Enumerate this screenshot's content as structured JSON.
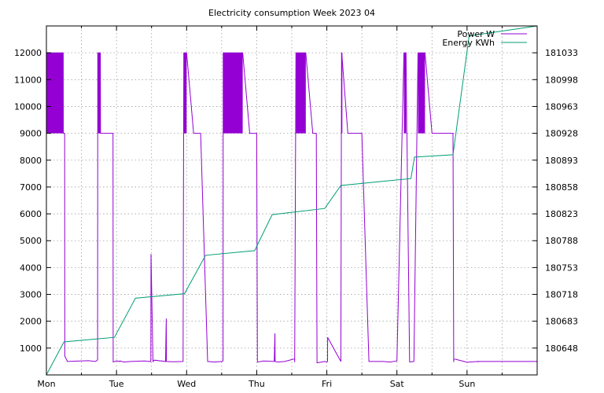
{
  "chart_data": {
    "type": "line",
    "title": "Electricity consumption Week 2023 04",
    "xlabel": "",
    "ylabel": "",
    "y2label": "",
    "grid": true,
    "legend_position": "top-right",
    "x_categories": [
      "Mon",
      "Tue",
      "Wed",
      "Thu",
      "Fri",
      "Sat",
      "Sun"
    ],
    "xlim": [
      0,
      7
    ],
    "ylim": [
      0,
      13000
    ],
    "y2lim": [
      180613,
      181068
    ],
    "y_ticks": [
      1000,
      2000,
      3000,
      4000,
      5000,
      6000,
      7000,
      8000,
      9000,
      10000,
      11000,
      12000
    ],
    "y2_ticks": [
      180648,
      180683,
      180718,
      180753,
      180788,
      180823,
      180858,
      180893,
      180928,
      180963,
      180998,
      181033
    ],
    "series": [
      {
        "name": "Power W",
        "axis": "y",
        "color": "#9400d3",
        "x": [
          0,
          0.24,
          0.241,
          0.26,
          0.262,
          0.3,
          0.6,
          0.7,
          0.73,
          0.732,
          0.77,
          0.772,
          0.95,
          0.952,
          1.0,
          1.05,
          1.052,
          1.1,
          1.2,
          1.4,
          1.46,
          1.462,
          1.49,
          1.492,
          1.52,
          1.54,
          1.7,
          1.71,
          1.712,
          1.8,
          1.95,
          1.96,
          2.0,
          2.1,
          2.2,
          2.3,
          2.4,
          2.5,
          2.52,
          2.522,
          2.8,
          2.9,
          3.0,
          3.01,
          3.012,
          3.1,
          3.25,
          3.26,
          3.262,
          3.3,
          3.4,
          3.54,
          3.541,
          3.56,
          3.7,
          3.8,
          3.85,
          3.86,
          3.97,
          4.0,
          4.01,
          4.012,
          4.2,
          4.21,
          4.212,
          4.3,
          4.5,
          4.6,
          4.8,
          4.9,
          5.0,
          5.1,
          5.13,
          5.14,
          5.142,
          5.18,
          5.182,
          5.24,
          5.242,
          5.3,
          5.4,
          5.5,
          5.8,
          5.81,
          5.812,
          6.0,
          6.15,
          6.16,
          6.162,
          6.3,
          6.5,
          6.6,
          6.8,
          7.0
        ],
        "y": [
          12000,
          12000,
          9000,
          9000,
          700,
          500,
          530,
          500,
          560,
          12000,
          12000,
          9000,
          9000,
          480,
          520,
          500,
          520,
          480,
          500,
          520,
          500,
          510,
          500,
          4500,
          500,
          550,
          500,
          2100,
          500,
          490,
          500,
          12000,
          12000,
          9000,
          9000,
          500,
          480,
          500,
          520,
          12000,
          12000,
          9000,
          9000,
          500,
          480,
          520,
          500,
          1550,
          500,
          480,
          500,
          600,
          470,
          12000,
          12000,
          9000,
          9000,
          450,
          500,
          480,
          500,
          1400,
          500,
          12000,
          12000,
          9000,
          9000,
          500,
          500,
          480,
          520,
          12000,
          12000,
          9000,
          9000,
          520,
          480,
          500,
          520,
          12000,
          12000,
          9000,
          9000,
          480,
          600,
          470,
          500,
          490,
          500,
          500,
          500,
          500,
          500,
          500
        ]
      },
      {
        "name": "Energy KWh",
        "axis": "y2",
        "color": "#009e73",
        "x": [
          0,
          0.25,
          0.97,
          1.27,
          1.97,
          2.27,
          2.97,
          3.22,
          3.97,
          4.2,
          5.2,
          5.25,
          5.8,
          6.03,
          7.0
        ],
        "y": [
          180613,
          180656,
          180662,
          180713,
          180719,
          180769,
          180775,
          180822,
          180830,
          180860,
          180869,
          180897,
          180900,
          181055,
          181068
        ]
      }
    ]
  }
}
